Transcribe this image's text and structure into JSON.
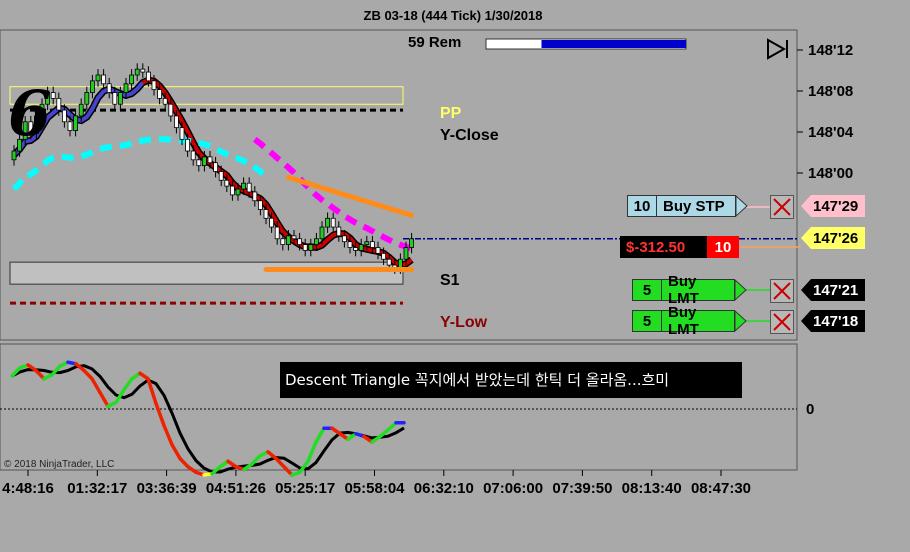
{
  "window": {
    "title": "ZB 03-18 (444 Tick)  1/30/2018"
  },
  "header": {
    "remaining_label": "59 Rem",
    "progress_fraction": 0.73
  },
  "watermark": {
    "number": "6",
    "copyright": "© 2018 NinjaTrader, LLC"
  },
  "levels": {
    "pp": "PP",
    "y_close": "Y-Close",
    "s1": "S1",
    "y_low": "Y-Low"
  },
  "annotation": {
    "text": "Descent Triangle 꼭지에서 받았는데 한틱 더 올라옴...흐미"
  },
  "orders": {
    "buy_stp": {
      "qty": "10",
      "label": "Buy STP",
      "price": "147'29"
    },
    "position": {
      "pnl": "$-312.50",
      "qty": "10",
      "price": "147'26"
    },
    "buy_lmt_1": {
      "qty": "5",
      "label": "Buy LMT",
      "price": "147'21"
    },
    "buy_lmt_2": {
      "qty": "5",
      "label": "Buy LMT",
      "price": "147'18"
    }
  },
  "colors": {
    "background": "#a9a9a9",
    "up_candle": "#22cc22",
    "down_candle": "#ffffff",
    "ma_red": "#cc0000",
    "ma_blue": "#4444cc",
    "cyan_ma": "#00ffff",
    "magenta_ma": "#ff00ff",
    "pp_line": "#ffff66",
    "orange_trend": "#ff8c1a",
    "buy_stp": "#add8e6",
    "buy_lmt": "#22dd22",
    "pnl_bg": "#000000",
    "pnl_text": "#ff3333"
  },
  "chart_data": [
    {
      "type": "candlestick",
      "title": "ZB 03-18 (444 Tick)  1/30/2018",
      "y_ticks": [
        "148'12",
        "148'08",
        "148'04",
        "148'00"
      ],
      "x_ticks": [
        "4:48:16",
        "01:32:17",
        "03:36:39",
        "04:51:26",
        "05:25:17",
        "05:58:04",
        "06:32:10",
        "07:06:00",
        "07:39:50",
        "08:13:40",
        "08:47:30"
      ],
      "y_unit": "32nds",
      "ylim": [
        147.5,
        148.5
      ],
      "close": [
        148.1,
        148.14,
        148.2,
        148.16,
        148.22,
        148.26,
        148.3,
        148.28,
        148.24,
        148.2,
        148.17,
        148.22,
        148.26,
        148.3,
        148.34,
        148.36,
        148.33,
        148.3,
        148.26,
        148.3,
        148.33,
        148.36,
        148.38,
        148.37,
        148.34,
        148.31,
        148.28,
        148.26,
        148.22,
        148.18,
        148.14,
        148.1,
        148.07,
        148.05,
        148.08,
        148.06,
        148.03,
        148.0,
        147.98,
        147.95,
        147.97,
        147.99,
        147.96,
        147.93,
        147.9,
        147.87,
        147.84,
        147.8,
        147.78,
        147.81,
        147.8,
        147.78,
        147.76,
        147.78,
        147.8,
        147.84,
        147.87,
        147.84,
        147.81,
        147.79,
        147.77,
        147.76,
        147.78,
        147.79,
        147.77,
        147.75,
        147.73,
        147.71,
        147.7,
        147.73,
        147.77,
        147.8
      ],
      "levels": {
        "pp_upper": 148.32,
        "pp_lower": 148.26,
        "y_close": 148.24,
        "s1": 147.72,
        "y_low": 147.58,
        "current": 147.8
      },
      "trendlines": [
        {
          "name": "upper",
          "from": [
            49,
            148.01
          ],
          "to": [
            71,
            147.88
          ]
        },
        {
          "name": "lower",
          "from": [
            45,
            147.695
          ],
          "to": [
            71,
            147.695
          ]
        }
      ]
    },
    {
      "type": "line",
      "name": "oscillator",
      "zero_label": "0",
      "values": [
        0.6,
        0.75,
        0.8,
        0.7,
        0.55,
        0.62,
        0.78,
        0.85,
        0.82,
        0.7,
        0.55,
        0.3,
        0.05,
        0.12,
        0.35,
        0.55,
        0.65,
        0.55,
        0.1,
        -0.3,
        -0.65,
        -0.9,
        -1.05,
        -1.15,
        -1.2,
        -1.18,
        -1.05,
        -0.95,
        -1.05,
        -1.1,
        -1.0,
        -0.85,
        -0.78,
        -0.9,
        -1.05,
        -1.2,
        -1.15,
        -0.95,
        -0.6,
        -0.35,
        -0.35,
        -0.45,
        -0.55,
        -0.45,
        -0.5,
        -0.6,
        -0.5,
        -0.38,
        -0.25,
        -0.25
      ],
      "ylim": [
        -1.5,
        1.4
      ]
    }
  ]
}
